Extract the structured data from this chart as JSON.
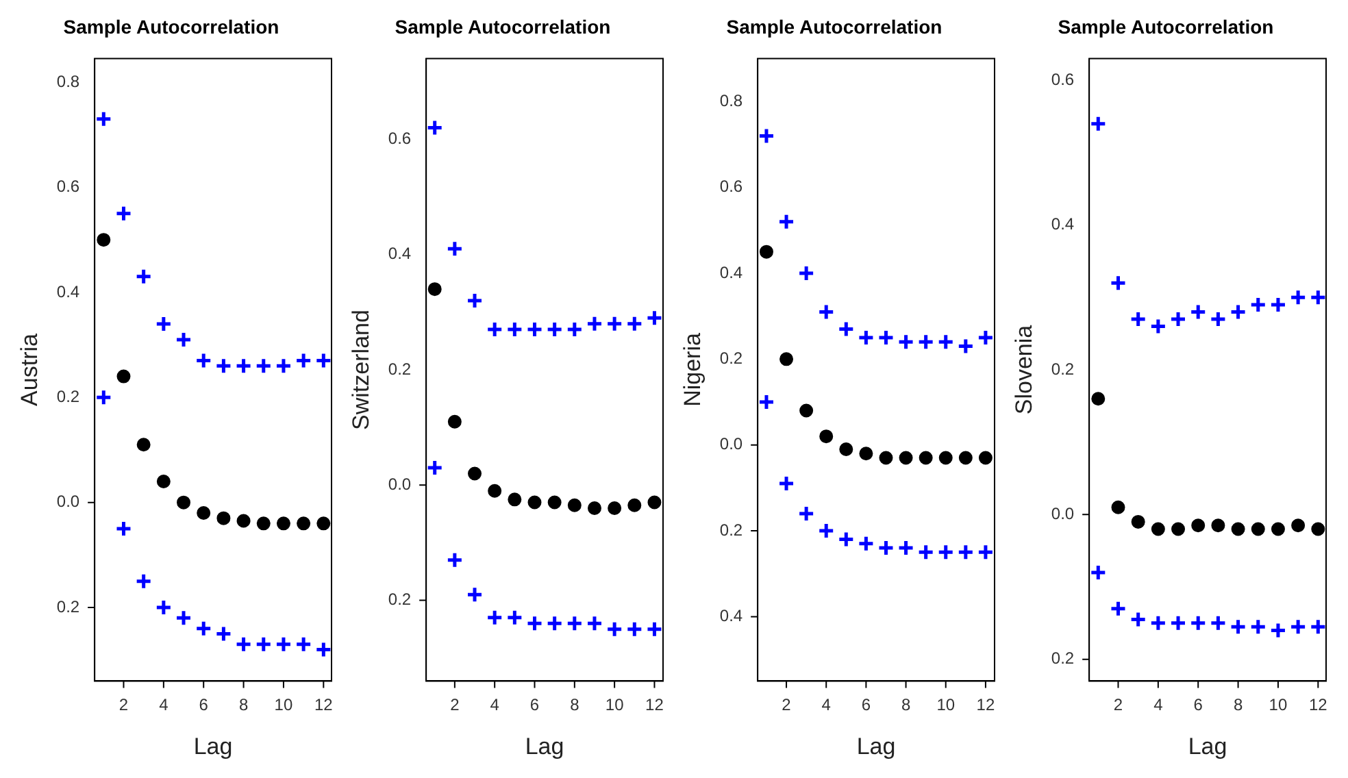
{
  "chart_data": [
    {
      "type": "scatter",
      "title": "Sample Autocorrelation",
      "xlabel": "Lag",
      "ylabel": "Austria",
      "x": [
        1,
        2,
        3,
        4,
        5,
        6,
        7,
        8,
        9,
        10,
        11,
        12
      ],
      "xlim": [
        0.55,
        12.4
      ],
      "xticks": [
        2,
        4,
        6,
        8,
        10,
        12
      ],
      "ylim": [
        -0.34,
        0.845
      ],
      "yticks": [
        {
          "value": -0.2,
          "label": "0.2"
        },
        {
          "value": 0,
          "label": "0.0"
        },
        0.2,
        0.4,
        0.6,
        0.8
      ],
      "series": [
        {
          "color": "#000000",
          "marker": "circle",
          "values": [
            0.5,
            0.24,
            0.11,
            0.04,
            0.0,
            -0.02,
            -0.03,
            -0.035,
            -0.04,
            -0.04,
            -0.04,
            -0.04
          ]
        },
        {
          "color": "#0000ff",
          "marker": "cross",
          "values": [
            0.73,
            0.55,
            0.43,
            0.34,
            0.31,
            0.27,
            0.26,
            0.26,
            0.26,
            0.26,
            0.27,
            0.27
          ]
        },
        {
          "color": "#0000ff",
          "marker": "cross",
          "values": [
            0.2,
            -0.05,
            -0.15,
            -0.2,
            -0.22,
            -0.24,
            -0.25,
            -0.27,
            -0.27,
            -0.27,
            -0.27,
            -0.28
          ]
        }
      ]
    },
    {
      "type": "scatter",
      "title": "Sample Autocorrelation",
      "xlabel": "Lag",
      "ylabel": "Switzerland",
      "x": [
        1,
        2,
        3,
        4,
        5,
        6,
        7,
        8,
        9,
        10,
        11,
        12
      ],
      "xlim": [
        0.57,
        12.43
      ],
      "xticks": [
        2,
        4,
        6,
        8,
        10,
        12
      ],
      "ylim": [
        -0.34,
        0.74
      ],
      "yticks": [
        {
          "value": -0.2,
          "label": "0.2"
        },
        {
          "value": 0,
          "label": "0.0"
        },
        0.2,
        0.4,
        0.6
      ],
      "series": [
        {
          "color": "#000000",
          "marker": "circle",
          "values": [
            0.34,
            0.11,
            0.02,
            -0.01,
            -0.025,
            -0.03,
            -0.03,
            -0.035,
            -0.04,
            -0.04,
            -0.035,
            -0.03
          ]
        },
        {
          "color": "#0000ff",
          "marker": "cross",
          "values": [
            0.62,
            0.41,
            0.32,
            0.27,
            0.27,
            0.27,
            0.27,
            0.27,
            0.28,
            0.28,
            0.28,
            0.29
          ]
        },
        {
          "color": "#0000ff",
          "marker": "cross",
          "values": [
            0.03,
            -0.13,
            -0.19,
            -0.23,
            -0.23,
            -0.24,
            -0.24,
            -0.24,
            -0.24,
            -0.25,
            -0.25,
            -0.25
          ]
        }
      ]
    },
    {
      "type": "scatter",
      "title": "Sample Autocorrelation",
      "xlabel": "Lag",
      "ylabel": "Nigeria",
      "x": [
        1,
        2,
        3,
        4,
        5,
        6,
        7,
        8,
        9,
        10,
        11,
        12
      ],
      "xlim": [
        0.56,
        12.45
      ],
      "xticks": [
        2,
        4,
        6,
        8,
        10,
        12
      ],
      "ylim": [
        -0.55,
        0.9
      ],
      "yticks": [
        {
          "value": -0.4,
          "label": "0.4"
        },
        {
          "value": -0.2,
          "label": "0.2"
        },
        {
          "value": 0,
          "label": "0.0"
        },
        0.2,
        0.4,
        0.6,
        0.8
      ],
      "series": [
        {
          "color": "#000000",
          "marker": "circle",
          "values": [
            0.45,
            0.2,
            0.08,
            0.02,
            -0.01,
            -0.02,
            -0.03,
            -0.03,
            -0.03,
            -0.03,
            -0.03,
            -0.03
          ]
        },
        {
          "color": "#0000ff",
          "marker": "cross",
          "values": [
            0.72,
            0.52,
            0.4,
            0.31,
            0.27,
            0.25,
            0.25,
            0.24,
            0.24,
            0.24,
            0.23,
            0.25
          ]
        },
        {
          "color": "#0000ff",
          "marker": "cross",
          "values": [
            0.1,
            -0.09,
            -0.16,
            -0.2,
            -0.22,
            -0.23,
            -0.24,
            -0.24,
            -0.25,
            -0.25,
            -0.25,
            -0.25
          ]
        }
      ]
    },
    {
      "type": "scatter",
      "title": "Sample Autocorrelation",
      "xlabel": "Lag",
      "ylabel": "Slovenia",
      "x": [
        1,
        2,
        3,
        4,
        5,
        6,
        7,
        8,
        9,
        10,
        11,
        12
      ],
      "xlim": [
        0.55,
        12.4
      ],
      "xticks": [
        2,
        4,
        6,
        8,
        10,
        12
      ],
      "ylim": [
        -0.23,
        0.63
      ],
      "yticks": [
        {
          "value": -0.2,
          "label": "0.2"
        },
        {
          "value": 0,
          "label": "0.0"
        },
        0.2,
        0.4,
        0.6
      ],
      "series": [
        {
          "color": "#000000",
          "marker": "circle",
          "values": [
            0.16,
            0.01,
            -0.01,
            -0.02,
            -0.02,
            -0.015,
            -0.015,
            -0.02,
            -0.02,
            -0.02,
            -0.015,
            -0.02
          ]
        },
        {
          "color": "#0000ff",
          "marker": "cross",
          "values": [
            0.54,
            0.32,
            0.27,
            0.26,
            0.27,
            0.28,
            0.27,
            0.28,
            0.29,
            0.29,
            0.3,
            0.3
          ]
        },
        {
          "color": "#0000ff",
          "marker": "cross",
          "values": [
            -0.08,
            -0.13,
            -0.145,
            -0.15,
            -0.15,
            -0.15,
            -0.15,
            -0.155,
            -0.155,
            -0.16,
            -0.155,
            -0.155
          ]
        }
      ]
    }
  ]
}
